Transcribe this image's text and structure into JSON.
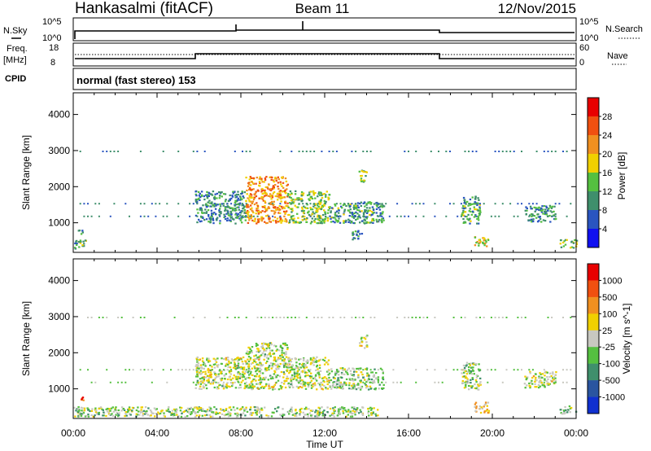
{
  "header": {
    "title": "Hankasalmi (fitACF)",
    "beam": "Beam 11",
    "date": "12/Nov/2015"
  },
  "panels": {
    "nsky": {
      "label": "N.Sky",
      "ticks": [
        "10^5",
        "10^0"
      ],
      "right_label": "N.Search",
      "right_ticks": [
        "10^5",
        "10^0"
      ]
    },
    "freq": {
      "label_line1": "Freq.",
      "label_line2": "[MHz]",
      "ticks": [
        "18",
        "8"
      ],
      "right_label": "Nave",
      "right_ticks": [
        "60",
        "0"
      ]
    },
    "cpid": {
      "label": "CPID",
      "text": "normal (fast stereo) 153"
    }
  },
  "chart_data": [
    {
      "type": "heatmap",
      "title": "",
      "xlabel": "",
      "ylabel": "Slant Range [km]",
      "xlim": [
        0,
        24
      ],
      "ylim": [
        180,
        4600
      ],
      "yticks": [
        1000,
        2000,
        3000,
        4000
      ],
      "colorbar": {
        "label": "Power [dB]",
        "ticks": [
          "4",
          "8",
          "12",
          "16",
          "20",
          "24",
          "28"
        ],
        "colors": [
          "#1010f0",
          "#2a55c0",
          "#3f8f6c",
          "#55c040",
          "#f0d000",
          "#f09020",
          "#f05010",
          "#e80000"
        ]
      },
      "regions": [
        {
          "t0": 5.8,
          "t1": 8.2,
          "r0": 1000,
          "r1": 1900,
          "level": 0.3
        },
        {
          "t0": 8.2,
          "t1": 10.2,
          "r0": 1000,
          "r1": 2300,
          "level": 0.7
        },
        {
          "t0": 10.2,
          "t1": 12.2,
          "r0": 1000,
          "r1": 1900,
          "level": 0.45
        },
        {
          "t0": 12.2,
          "t1": 14.8,
          "r0": 1000,
          "r1": 1600,
          "level": 0.35
        },
        {
          "t0": 13.6,
          "t1": 14.0,
          "r0": 2150,
          "r1": 2500,
          "level": 0.4
        },
        {
          "t0": 13.2,
          "t1": 13.8,
          "r0": 550,
          "r1": 800,
          "level": 0.3
        },
        {
          "t0": 18.5,
          "t1": 19.4,
          "r0": 1000,
          "r1": 1750,
          "level": 0.35
        },
        {
          "t0": 21.5,
          "t1": 23.0,
          "r0": 1050,
          "r1": 1500,
          "level": 0.3
        },
        {
          "t0": 19.1,
          "t1": 19.8,
          "r0": 360,
          "r1": 650,
          "level": 0.55
        },
        {
          "t0": 0.0,
          "t1": 0.6,
          "r0": 300,
          "r1": 560,
          "level": 0.4
        },
        {
          "t0": 0.2,
          "t1": 0.5,
          "r0": 700,
          "r1": 820,
          "level": 0.3
        },
        {
          "t0": 23.2,
          "t1": 24.0,
          "r0": 330,
          "r1": 550,
          "level": 0.45
        }
      ]
    },
    {
      "type": "heatmap",
      "title": "",
      "xlabel": "Time UT",
      "ylabel": "Slant Range [km]",
      "xlim": [
        0,
        24
      ],
      "ylim": [
        180,
        4600
      ],
      "yticks": [
        1000,
        2000,
        3000,
        4000
      ],
      "xticks": [
        "00:00",
        "04:00",
        "08:00",
        "12:00",
        "16:00",
        "20:00",
        "00:00"
      ],
      "colorbar": {
        "label": "Velocity [m s^-1]",
        "ticks": [
          "1000",
          "500",
          "100",
          "25",
          "-25",
          "-100",
          "-500",
          "-1000"
        ],
        "colors": [
          "#1030d0",
          "#2a55a0",
          "#3f8f6c",
          "#55c040",
          "#c8c8c0",
          "#f0d000",
          "#f09020",
          "#f05010",
          "#e80000"
        ]
      },
      "regions": [
        {
          "t0": 5.8,
          "t1": 8.2,
          "r0": 1000,
          "r1": 1900,
          "level": 0.5
        },
        {
          "t0": 8.2,
          "t1": 10.2,
          "r0": 1000,
          "r1": 2300,
          "level": 0.5
        },
        {
          "t0": 10.2,
          "t1": 12.2,
          "r0": 1000,
          "r1": 1900,
          "level": 0.5
        },
        {
          "t0": 12.2,
          "t1": 14.8,
          "r0": 1000,
          "r1": 1600,
          "level": 0.42
        },
        {
          "t0": 13.6,
          "t1": 14.0,
          "r0": 2150,
          "r1": 2500,
          "level": 0.5
        },
        {
          "t0": 18.5,
          "t1": 19.4,
          "r0": 1000,
          "r1": 1750,
          "level": 0.45
        },
        {
          "t0": 21.5,
          "t1": 23.0,
          "r0": 1050,
          "r1": 1500,
          "level": 0.5
        },
        {
          "t0": 19.1,
          "t1": 19.8,
          "r0": 360,
          "r1": 650,
          "level": 0.62
        },
        {
          "t0": 0.0,
          "t1": 14.5,
          "r0": 250,
          "r1": 520,
          "level": 0.45
        },
        {
          "t0": 0.2,
          "t1": 0.5,
          "r0": 700,
          "r1": 820,
          "level": 0.75
        },
        {
          "t0": 23.2,
          "t1": 24.0,
          "r0": 330,
          "r1": 550,
          "level": 0.4
        }
      ]
    }
  ],
  "colors": {
    "axis": "#000000",
    "background": "#ffffff"
  }
}
